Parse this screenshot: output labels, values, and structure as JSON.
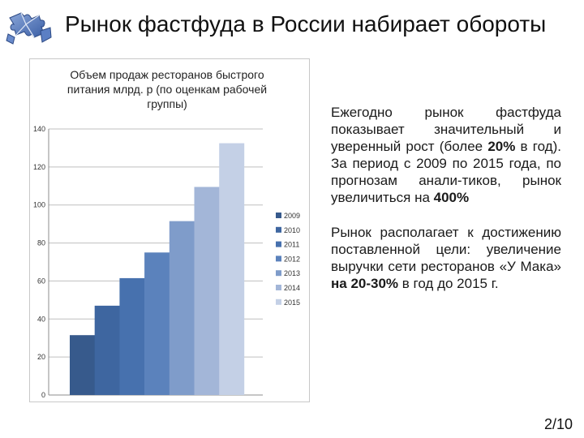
{
  "slide": {
    "title": "Рынок фастфуда в России набирает обороты",
    "page_number": "2/10",
    "logo_icon": "puzzle-icon",
    "accent_color": "#4f71ad"
  },
  "text": {
    "paragraph1": {
      "p1": "Ежегодно рынок фастфуда показывает значительный и уверенный рост (более ",
      "b1": "20%",
      "p2": " в год). За период с 2009 по 2015 года, по прогнозам анали-тиков, рынок увеличиться на ",
      "b2": "400%"
    },
    "paragraph2": {
      "p1": "Рынок располагает к достижению поставленной цели: увеличение выручки сети ресторанов «У Мака» ",
      "b1": "на 20-30%",
      "p2": " в год до 2015 г."
    }
  },
  "chart_data": {
    "type": "bar",
    "title": "Объем продаж ресторанов быстрого питания млрд. р (по оценкам рабочей группы)",
    "xlabel": "",
    "ylabel": "",
    "ylim": [
      0,
      140
    ],
    "yticks": [
      "0",
      "20",
      "40",
      "60",
      "80",
      "100",
      "120",
      "140"
    ],
    "grid": true,
    "legend": "right",
    "series": [
      {
        "name": "2009",
        "values": [
          31.5
        ],
        "color": "#375a8c"
      },
      {
        "name": "2010",
        "values": [
          47
        ],
        "color": "#3e66a0"
      },
      {
        "name": "2011",
        "values": [
          61.5
        ],
        "color": "#4771ae"
      },
      {
        "name": "2012",
        "values": [
          75
        ],
        "color": "#5b82bc"
      },
      {
        "name": "2013",
        "values": [
          91.5
        ],
        "color": "#7f9cca"
      },
      {
        "name": "2014",
        "values": [
          109.5
        ],
        "color": "#a3b6d8"
      },
      {
        "name": "2015",
        "values": [
          132.5
        ],
        "color": "#c4d0e6"
      }
    ]
  }
}
